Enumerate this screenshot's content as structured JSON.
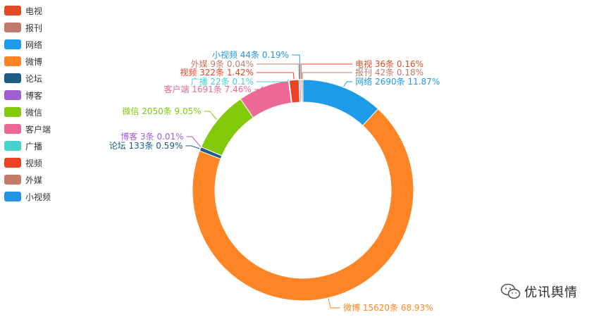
{
  "chart_data": {
    "type": "pie",
    "donut": true,
    "legend_position": "top-left",
    "series": [
      {
        "name": "网络",
        "value": 2690,
        "unit": "条",
        "percent": "11.87%",
        "color": "#1e9be8",
        "label": "网络 2690条  11.87%"
      },
      {
        "name": "微博",
        "value": 15620,
        "unit": "条",
        "percent": "68.93%",
        "color": "#fe8526",
        "label": "微博 15620条  68.93%"
      },
      {
        "name": "论坛",
        "value": 133,
        "unit": "条",
        "percent": "0.59%",
        "color": "#1e5c85",
        "label": "论坛 133条  0.59%"
      },
      {
        "name": "博客",
        "value": 3,
        "unit": "条",
        "percent": "0.01%",
        "color": "#a25fd2",
        "label": "博客 3条  0.01%"
      },
      {
        "name": "微信",
        "value": 2050,
        "unit": "条",
        "percent": "9.05%",
        "color": "#82c90a",
        "label": "微信 2050条  9.05%"
      },
      {
        "name": "客户端",
        "value": 1691,
        "unit": "条",
        "percent": "7.46%",
        "color": "#ec6895",
        "label": "客户端 1691条  7.46%"
      },
      {
        "name": "广播",
        "value": 22,
        "unit": "条",
        "percent": "0.1%",
        "color": "#47d1cc",
        "label": "广播 22条  0.1%"
      },
      {
        "name": "视频",
        "value": 322,
        "unit": "条",
        "percent": "1.42%",
        "color": "#e94323",
        "label": "视频 322条  1.42%"
      },
      {
        "name": "外媒",
        "value": 9,
        "unit": "条",
        "percent": "0.04%",
        "color": "#c47b68",
        "label": "外媒 9条  0.04%"
      },
      {
        "name": "小视频",
        "value": 44,
        "unit": "条",
        "percent": "0.19%",
        "color": "#2395e4",
        "label": "小视频 44条  0.19%"
      },
      {
        "name": "电视",
        "value": 36,
        "unit": "条",
        "percent": "0.16%",
        "color": "#e24925",
        "label": "电视 36条  0.16%"
      },
      {
        "name": "报刊",
        "value": 42,
        "unit": "条",
        "percent": "0.18%",
        "color": "#c17a69",
        "label": "报刊 42条  0.18%"
      }
    ]
  },
  "legend": {
    "items": [
      {
        "label": "电视",
        "color": "#e24925"
      },
      {
        "label": "报刊",
        "color": "#c17a69"
      },
      {
        "label": "网络",
        "color": "#1e9be8"
      },
      {
        "label": "微博",
        "color": "#fe8526"
      },
      {
        "label": "论坛",
        "color": "#1e5c85"
      },
      {
        "label": "博客",
        "color": "#a25fd2"
      },
      {
        "label": "微信",
        "color": "#82c90a"
      },
      {
        "label": "客户端",
        "color": "#ec6895"
      },
      {
        "label": "广播",
        "color": "#47d1cc"
      },
      {
        "label": "视频",
        "color": "#e94323"
      },
      {
        "label": "外媒",
        "color": "#c47b68"
      },
      {
        "label": "小视频",
        "color": "#2395e4"
      }
    ]
  },
  "watermark": {
    "text": "优讯舆情",
    "icon": "wechat-icon"
  }
}
